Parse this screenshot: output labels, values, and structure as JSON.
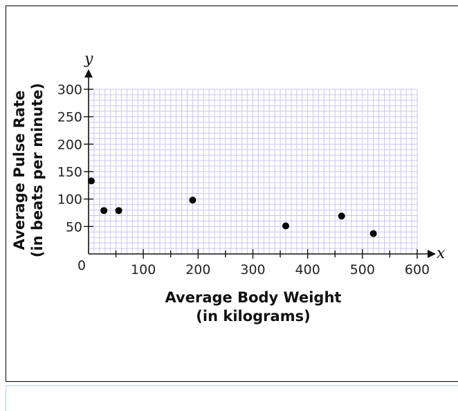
{
  "chart_data": {
    "type": "scatter",
    "title": "",
    "xlabel_line1": "Average Body Weight",
    "xlabel_line2": "(in kilograms)",
    "ylabel_line1": "Average Pulse Rate",
    "ylabel_line2": "(in beats per minute)",
    "x_axis_var": "x",
    "y_axis_var": "y",
    "origin_label": "0",
    "xlim": [
      0,
      600
    ],
    "ylim": [
      0,
      300
    ],
    "x_major_ticks": [
      100,
      200,
      300,
      400,
      500,
      600
    ],
    "x_tick_labels": [
      "100",
      "200",
      "300",
      "400",
      "500",
      "600"
    ],
    "y_major_ticks": [
      50,
      100,
      150,
      200,
      250,
      300
    ],
    "y_tick_labels": [
      "50",
      "100",
      "150",
      "200",
      "250",
      "300"
    ],
    "grid": true,
    "grid_minor_step_x": 10,
    "grid_minor_step_y": 10,
    "grid_color": "#c9c6f2",
    "point_color": "#000000",
    "points": [
      {
        "x": 5,
        "y": 133
      },
      {
        "x": 28,
        "y": 79
      },
      {
        "x": 55,
        "y": 79
      },
      {
        "x": 190,
        "y": 98
      },
      {
        "x": 360,
        "y": 51
      },
      {
        "x": 462,
        "y": 69
      },
      {
        "x": 520,
        "y": 37
      }
    ]
  },
  "answer_box": {
    "value": ""
  }
}
